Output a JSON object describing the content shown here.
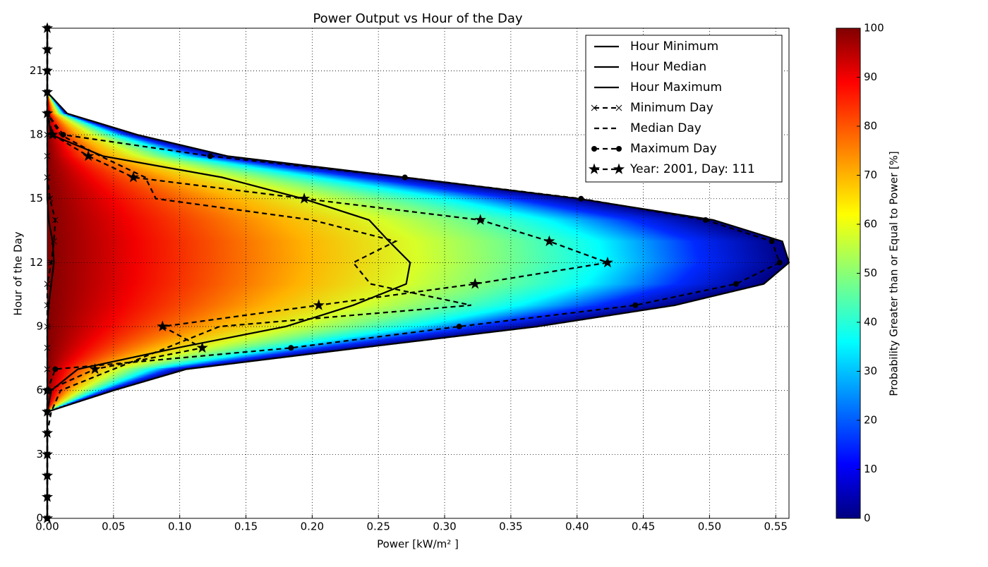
{
  "chart_data": {
    "type": "line",
    "title": "Power Output vs Hour of the Day",
    "xlabel": "Power [kW/m² ]",
    "ylabel": "Hour of the Day",
    "y": [
      0,
      1,
      2,
      3,
      4,
      5,
      6,
      7,
      8,
      9,
      10,
      11,
      12,
      13,
      14,
      15,
      16,
      17,
      18,
      19,
      20,
      21,
      22,
      23
    ],
    "xlim": [
      0,
      0.56
    ],
    "xticks": [
      {
        "value": 0,
        "label": "0.00"
      },
      {
        "value": 0.05,
        "label": "0.05"
      },
      {
        "value": 0.1,
        "label": "0.10"
      },
      {
        "value": 0.15,
        "label": "0.15"
      },
      {
        "value": 0.2,
        "label": "0.20"
      },
      {
        "value": 0.25,
        "label": "0.25"
      },
      {
        "value": 0.3,
        "label": "0.30"
      },
      {
        "value": 0.35,
        "label": "0.35"
      },
      {
        "value": 0.4,
        "label": "0.40"
      },
      {
        "value": 0.45,
        "label": "0.45"
      },
      {
        "value": 0.5,
        "label": "0.50"
      },
      {
        "value": 0.55,
        "label": "0.55"
      }
    ],
    "ylim": [
      0,
      23
    ],
    "yticks": [
      0,
      3,
      6,
      9,
      12,
      15,
      18,
      21
    ],
    "grid": true,
    "legend": "upper right",
    "series": [
      {
        "name": "Hour Minimum",
        "color": "#000000",
        "style": "solid",
        "marker": "none",
        "values": [
          0,
          0,
          0,
          0,
          0,
          0,
          0,
          0,
          0,
          0,
          0.001,
          0.003,
          0.005,
          0.004,
          0.001,
          0,
          0,
          0,
          0,
          0,
          0,
          0,
          0,
          0
        ]
      },
      {
        "name": "Hour Median",
        "color": "#000000",
        "style": "solid",
        "marker": "none",
        "values": [
          0,
          0,
          0,
          0,
          0,
          0,
          0.003,
          0.023,
          0.098,
          0.18,
          0.231,
          0.271,
          0.274,
          0.258,
          0.243,
          0.193,
          0.132,
          0.042,
          0.003,
          0,
          0,
          0,
          0,
          0
        ]
      },
      {
        "name": "Hour Maximum",
        "color": "#000000",
        "style": "solid",
        "marker": "none",
        "values": [
          0,
          0,
          0,
          0,
          0,
          0,
          0.05,
          0.105,
          0.236,
          0.37,
          0.474,
          0.541,
          0.56,
          0.555,
          0.503,
          0.401,
          0.27,
          0.136,
          0.068,
          0.015,
          0,
          0,
          0,
          0
        ]
      },
      {
        "name": "Minimum Day",
        "color": "#000000",
        "style": "dashed",
        "marker": "x",
        "values": [
          0,
          0,
          0,
          0,
          0,
          0,
          0,
          0,
          0,
          0,
          0,
          0,
          0.003,
          0.005,
          0.006,
          0.002,
          0,
          0,
          0,
          0,
          0,
          0,
          0,
          0
        ]
      },
      {
        "name": "Median Day",
        "color": "#000000",
        "style": "dashed",
        "marker": "none",
        "values": [
          0,
          0,
          0,
          0,
          0,
          0.003,
          0.01,
          0.05,
          0.09,
          0.13,
          0.32,
          0.244,
          0.231,
          0.263,
          0.2,
          0.082,
          0.074,
          0.04,
          0.01,
          0,
          0,
          0,
          0,
          0
        ]
      },
      {
        "name": "Maximum Day",
        "color": "#000000",
        "style": "dashed",
        "marker": "circle",
        "values": [
          0,
          0,
          0,
          0,
          0,
          0,
          0,
          0.006,
          0.184,
          0.311,
          0.444,
          0.52,
          0.553,
          0.547,
          0.497,
          0.403,
          0.27,
          0.123,
          0.012,
          0,
          0,
          0,
          0,
          0
        ]
      },
      {
        "name": "Year: 2001, Day: 111",
        "color": "#000000",
        "style": "dashed",
        "marker": "star",
        "values": [
          0,
          0,
          0,
          0,
          0,
          0,
          0,
          0.036,
          0.117,
          0.087,
          0.205,
          0.323,
          0.423,
          0.379,
          0.327,
          0.194,
          0.065,
          0.031,
          0.004,
          0,
          0,
          0,
          0,
          0
        ]
      }
    ],
    "colorbar_label": "Probability Greater than or Equal to Power [%]",
    "colorbar_lim": [
      0,
      100
    ],
    "colorbar_ticks": [
      0,
      10,
      20,
      30,
      40,
      50,
      60,
      70,
      80,
      90,
      100
    ],
    "colormap": "jet"
  }
}
